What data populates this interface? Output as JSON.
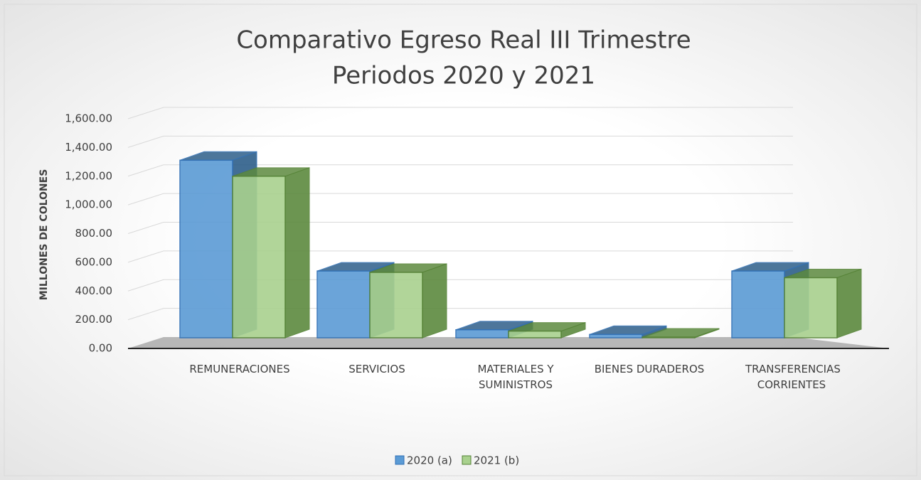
{
  "chart_data": {
    "type": "bar3d",
    "title": "Comparativo Egreso Real III Trimestre",
    "subtitle": "Periodos 2020 y 2021",
    "y_label": "MILLONES DE COLONES",
    "categories": [
      "REMUNERACIONES",
      "SERVICIOS",
      "MATERIALES Y SUMINISTROS",
      "BIENES DURADEROS",
      "TRANSFERENCIAS CORRIENTES"
    ],
    "series": [
      {
        "name": "2020 (a)",
        "color": "#5b9bd5",
        "values": [
          1330,
          500,
          60,
          25,
          500
        ]
      },
      {
        "name": "2021 (b)",
        "color": "#a9d18e",
        "values": [
          1210,
          490,
          50,
          5,
          450
        ]
      }
    ],
    "ylim": [
      0,
      1600
    ],
    "yticks": [
      {
        "value": 0,
        "label": "0.00"
      },
      {
        "value": 200,
        "label": "200.00"
      },
      {
        "value": 400,
        "label": "400.00"
      },
      {
        "value": 600,
        "label": "600.00"
      },
      {
        "value": 800,
        "label": "800.00"
      },
      {
        "value": 1000,
        "label": "1,000.00"
      },
      {
        "value": 1200,
        "label": "1,200.00"
      },
      {
        "value": 1400,
        "label": "1,400.00"
      },
      {
        "value": 1600,
        "label": "1,600.00"
      }
    ],
    "grid": true,
    "legend": "bottom"
  }
}
